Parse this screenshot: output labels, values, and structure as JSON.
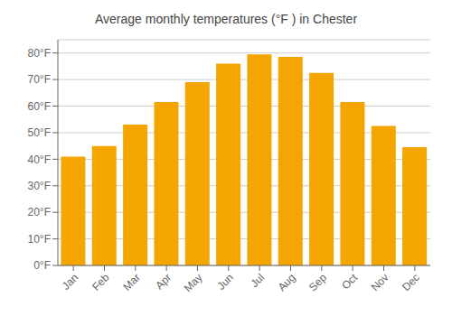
{
  "chart_data": {
    "type": "bar",
    "title": "Average monthly temperatures (°F ) in Chester",
    "categories": [
      "Jan",
      "Feb",
      "Mar",
      "Apr",
      "May",
      "Jun",
      "Jul",
      "Aug",
      "Sep",
      "Oct",
      "Nov",
      "Dec"
    ],
    "values": [
      41.0,
      45.0,
      53.0,
      61.5,
      69.0,
      76.0,
      79.5,
      78.5,
      72.5,
      61.5,
      52.5,
      44.5
    ],
    "color": "#F5A500",
    "ylim": [
      0,
      85
    ],
    "yticks": [
      {
        "value": 0,
        "label": "0°F"
      },
      {
        "value": 10,
        "label": "10°F"
      },
      {
        "value": 20,
        "label": "20°F"
      },
      {
        "value": 30,
        "label": "30°F"
      },
      {
        "value": 40,
        "label": "40°F"
      },
      {
        "value": 50,
        "label": "50°F"
      },
      {
        "value": 60,
        "label": "60°F"
      },
      {
        "value": 70,
        "label": "70°F"
      },
      {
        "value": 80,
        "label": "80°F"
      }
    ],
    "grid": true
  }
}
